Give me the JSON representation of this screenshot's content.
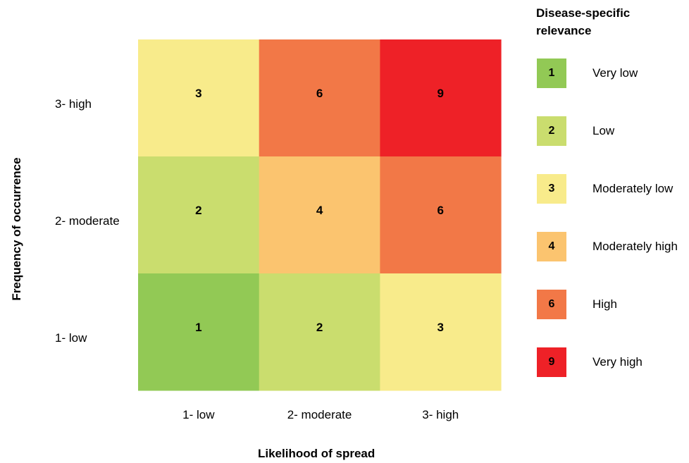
{
  "chart_data": {
    "type": "heatmap",
    "title": "",
    "xlabel": "Likelihood of spread",
    "ylabel": "Frequency of occurrence",
    "x_categories": [
      "1- low",
      "2- moderate",
      "3- high"
    ],
    "y_categories": [
      "3- high",
      "2- moderate",
      "1- low"
    ],
    "values": [
      [
        3,
        6,
        9
      ],
      [
        2,
        4,
        6
      ],
      [
        1,
        2,
        3
      ]
    ],
    "legend": {
      "title": "Disease-specific relevance",
      "title_lines": [
        "Disease-specific",
        "relevance"
      ],
      "placement": "right",
      "items": [
        {
          "value": "1",
          "label": "Very low",
          "color": "#92C955"
        },
        {
          "value": "2",
          "label": "Low",
          "color": "#CADD6E"
        },
        {
          "value": "3",
          "label": "Moderately low",
          "color": "#F8EB8B"
        },
        {
          "value": "4",
          "label": "Moderately high",
          "color": "#FBC46F"
        },
        {
          "value": "6",
          "label": "High",
          "color": "#F27847"
        },
        {
          "value": "9",
          "label": "Very high",
          "color": "#EE2127"
        }
      ]
    },
    "grid": false
  }
}
